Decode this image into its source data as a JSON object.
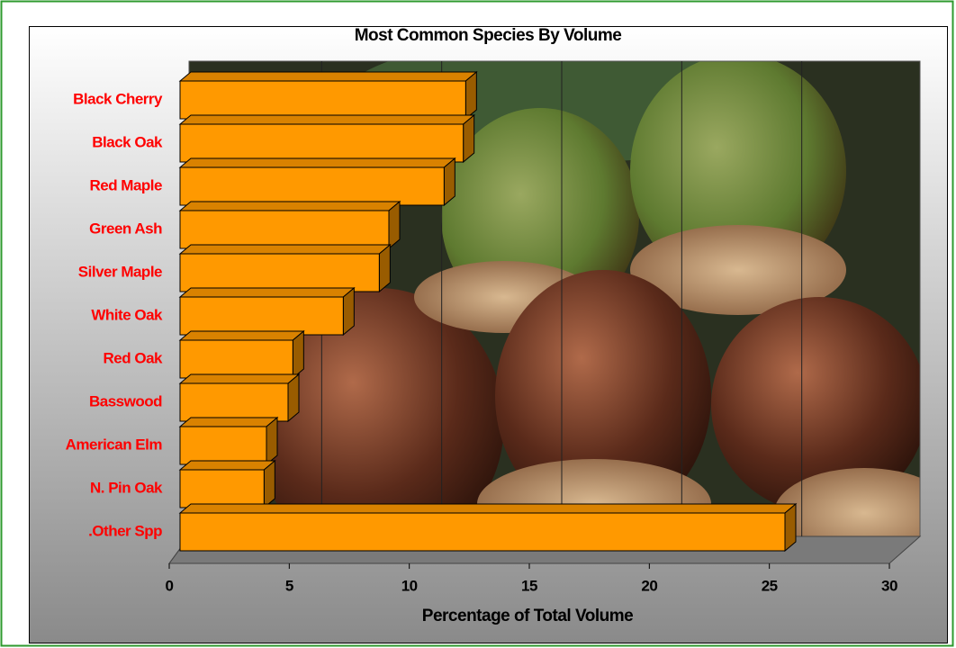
{
  "chart_data": {
    "type": "bar3d",
    "orientation": "horizontal",
    "title": "Most Common Species By Volume",
    "categories": [
      "Black Cherry",
      "Black Oak",
      "Red Maple",
      "Green Ash",
      "Silver Maple",
      "White Oak",
      "Red Oak",
      "Basswood",
      "American Elm",
      "N. Pin Oak",
      ".Other Spp"
    ],
    "values": [
      11.9,
      11.8,
      11.0,
      8.7,
      8.3,
      6.8,
      4.7,
      4.5,
      3.6,
      3.5,
      25.2
    ],
    "color": "#ff9900",
    "label_color": "#ff0000",
    "x_label": "Percentage of Total Volume",
    "xlim": [
      0,
      30
    ],
    "xticks": [
      0,
      5,
      10,
      15,
      20,
      25,
      30
    ],
    "grid": true
  }
}
